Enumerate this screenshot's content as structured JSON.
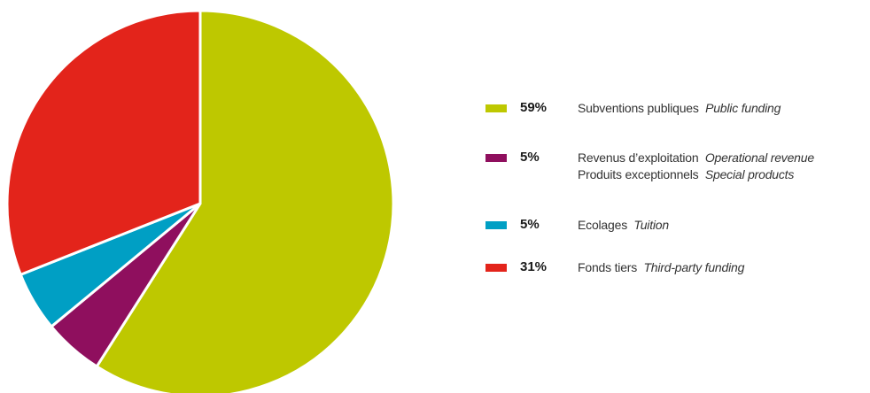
{
  "chart_data": {
    "type": "pie",
    "slices": [
      {
        "value": 59,
        "label_pct": "59%",
        "label_fr": "Subventions publiques",
        "label_en": "Public funding",
        "color": "#bec800"
      },
      {
        "value": 5,
        "label_pct": "5%",
        "label_fr": "Revenus d’exploitation",
        "label_en": "Operational revenue",
        "label_fr_2": "Produits exceptionnels",
        "label_en_2": "Special products",
        "color": "#8f0f5e"
      },
      {
        "value": 5,
        "label_pct": "5%",
        "label_fr": "Ecolages",
        "label_en": "Tuition",
        "color": "#009fc4"
      },
      {
        "value": 31,
        "label_pct": "31%",
        "label_fr": "Fonds tiers",
        "label_en": "Third-party funding",
        "color": "#e3241b"
      }
    ],
    "legend_position": "right"
  }
}
